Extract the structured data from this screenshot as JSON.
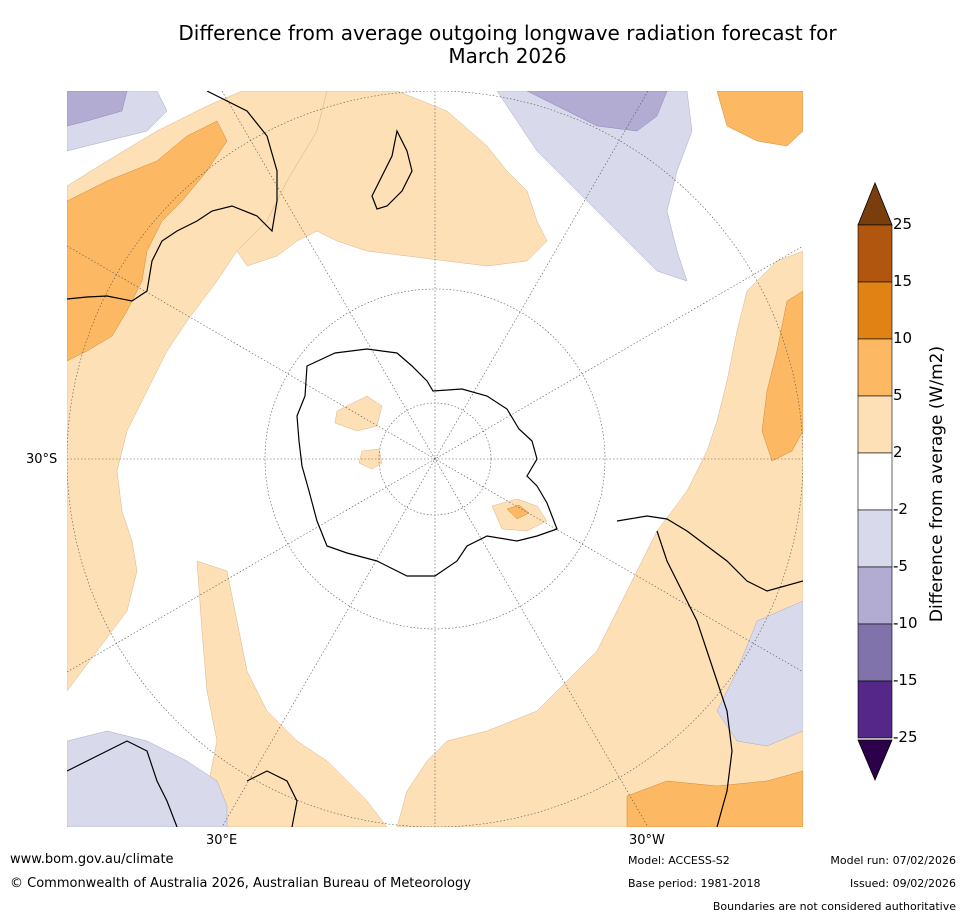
{
  "title": {
    "line1": "Difference from average outgoing longwave radiation forecast for",
    "line2": "March 2026"
  },
  "map": {
    "projection": "south polar stereographic",
    "axis_labels": {
      "lat_left": "30°S",
      "lon_bottom_left": "30°E",
      "lon_bottom_right": "30°W"
    }
  },
  "legend": {
    "title": "Difference from average (W/m2)",
    "ticks": [
      "25",
      "15",
      "10",
      "5",
      "2",
      "-2",
      "-5",
      "-10",
      "-15",
      "-25"
    ],
    "colors": {
      "over": "#7a3e0c",
      "15_25": "#b1560f",
      "10_15": "#e08214",
      "5_10": "#fdb863",
      "2_5": "#fee0b6",
      "m2_2": "#ffffff",
      "m5_m2": "#d8daeb",
      "m10_m5": "#b2abd2",
      "m15_m10": "#8073ac",
      "m25_m15": "#542788",
      "under": "#2d004b"
    }
  },
  "footer": {
    "website": "www.bom.gov.au/climate",
    "copyright": "© Commonwealth of Australia 2026, Australian Bureau of Meteorology",
    "model": "Model: ACCESS-S2",
    "base_period": "Base period: 1981-2018",
    "model_run": "Model run: 07/02/2026",
    "issued": "Issued: 09/02/2026",
    "disclaimer": "Boundaries are not considered authoritative"
  }
}
